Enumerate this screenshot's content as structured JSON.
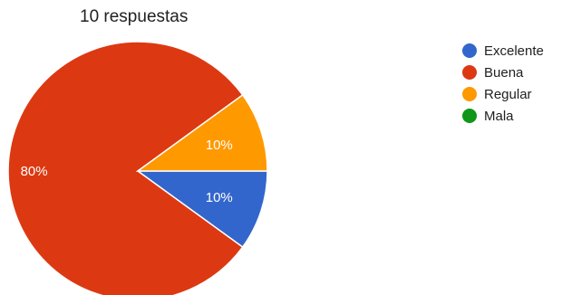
{
  "summary": "10 respuestas",
  "chart_data": {
    "type": "pie",
    "legend_position": "right",
    "slices": [
      {
        "label": "Excelente",
        "value": 10,
        "color": "#3366cc",
        "data_label": "10%"
      },
      {
        "label": "Buena",
        "value": 80,
        "color": "#dc3912",
        "data_label": "80%"
      },
      {
        "label": "Regular",
        "value": 10,
        "color": "#ff9900",
        "data_label": "10%"
      },
      {
        "label": "Mala",
        "value": 0,
        "color": "#109618",
        "data_label": ""
      }
    ]
  }
}
